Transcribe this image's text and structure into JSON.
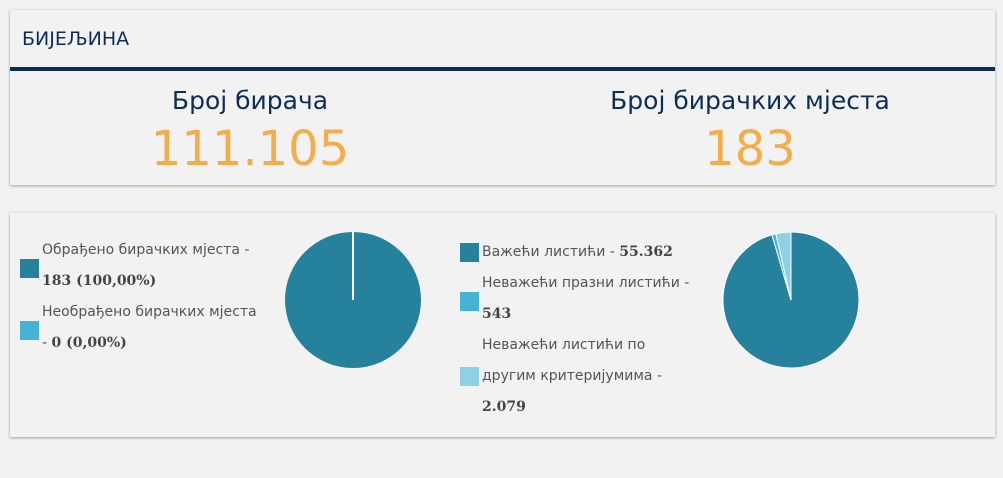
{
  "header": {
    "title": "БИЈЕЉИНА"
  },
  "stats": [
    {
      "label": "Број бирача",
      "value": "111.105"
    },
    {
      "label": "Број бирачких мјеста",
      "value": "183"
    }
  ],
  "colors": {
    "dark": "#25819c",
    "mid": "#45b3d5",
    "light": "#8fd0e6",
    "accent": "#f4ad4a",
    "navy": "#0d2d58"
  },
  "chart_data": [
    {
      "type": "pie",
      "legend_placement": "left",
      "slices": [
        {
          "name": "Обрађено бирачких мјеста - ",
          "value_text": "183 (100,00%)",
          "value": 183,
          "color": "#25819c"
        },
        {
          "name": "Необрађено бирачких мјеста - ",
          "value_text": "0 (0,00%)",
          "value": 0,
          "color": "#45b3d5"
        }
      ]
    },
    {
      "type": "pie",
      "legend_placement": "left",
      "slices": [
        {
          "name": "Важећи листићи - ",
          "value_text": "55.362",
          "value": 55362,
          "color": "#25819c"
        },
        {
          "name": "Неважећи празни листићи - ",
          "value_text": "543",
          "value": 543,
          "color": "#45b3d5"
        },
        {
          "name": "Неважећи листићи по другим критеријумима - ",
          "value_text": "2.079",
          "value": 2079,
          "color": "#8fd0e6"
        }
      ]
    }
  ]
}
